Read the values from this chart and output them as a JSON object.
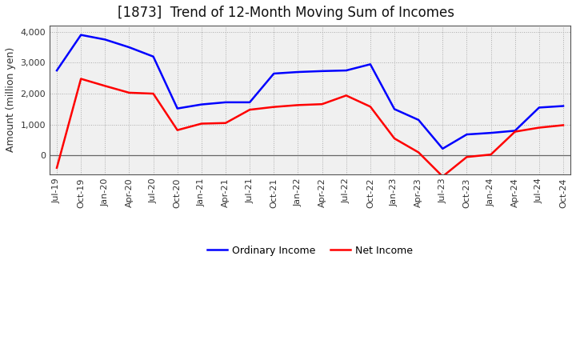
{
  "title": "[1873]  Trend of 12-Month Moving Sum of Incomes",
  "ylabel": "Amount (million yen)",
  "background_color": "#ffffff",
  "plot_bg_color": "#f0f0f0",
  "grid_color": "#aaaaaa",
  "x_labels": [
    "Jul-19",
    "Oct-19",
    "Jan-20",
    "Apr-20",
    "Jul-20",
    "Oct-20",
    "Jan-21",
    "Apr-21",
    "Jul-21",
    "Oct-21",
    "Jan-22",
    "Apr-22",
    "Jul-22",
    "Oct-22",
    "Jan-23",
    "Apr-23",
    "Jul-23",
    "Oct-23",
    "Jan-24",
    "Apr-24",
    "Jul-24",
    "Oct-24"
  ],
  "ordinary_income": [
    2750,
    3900,
    3750,
    3500,
    3200,
    1520,
    1650,
    1720,
    1720,
    2650,
    2700,
    2730,
    2750,
    2950,
    1500,
    1150,
    220,
    680,
    730,
    800,
    1550,
    1600
  ],
  "net_income": [
    -400,
    2480,
    2250,
    2030,
    2000,
    820,
    1030,
    1050,
    1480,
    1570,
    1630,
    1660,
    1940,
    1580,
    550,
    100,
    -680,
    -50,
    30,
    770,
    900,
    980
  ],
  "ordinary_color": "#0000ff",
  "net_color": "#ff0000",
  "ylim_min": -600,
  "ylim_max": 4200,
  "yticks": [
    0,
    1000,
    2000,
    3000,
    4000
  ],
  "line_width": 1.8,
  "title_fontsize": 12,
  "tick_fontsize": 8,
  "ylabel_fontsize": 9,
  "legend_fontsize": 9
}
